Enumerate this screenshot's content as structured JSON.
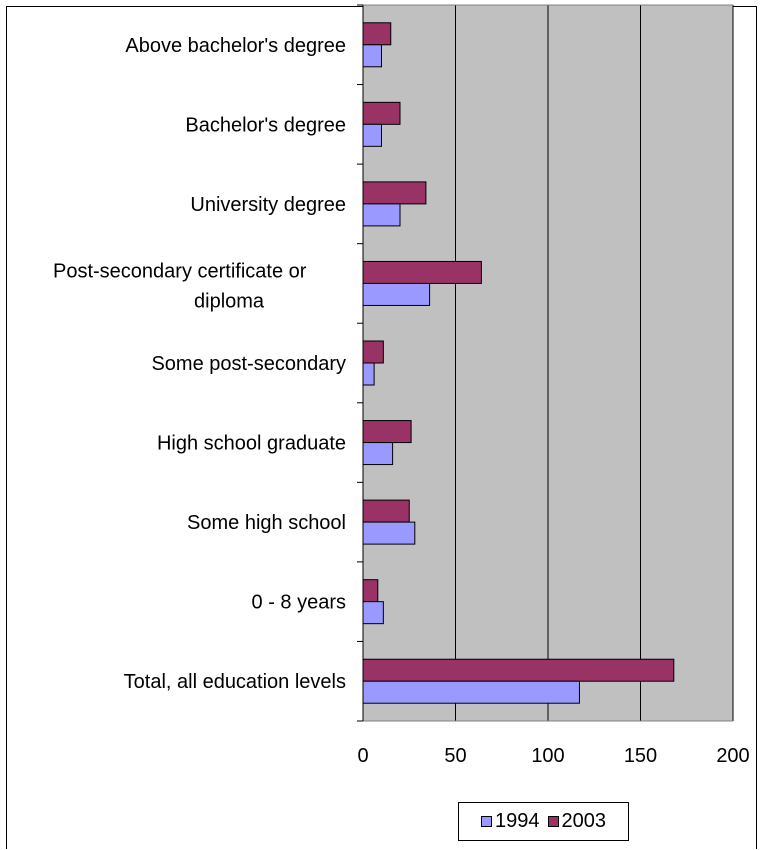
{
  "chart_data": {
    "type": "bar",
    "orientation": "horizontal",
    "categories": [
      "Above bachelor's degree",
      "Bachelor's degree",
      "University degree",
      "Post-secondary certificate or diploma",
      "Some post-secondary",
      "High school graduate",
      "Some high school",
      "0 - 8  years",
      "Total, all education levels"
    ],
    "series": [
      {
        "name": "1994",
        "color": "#9999ff",
        "values": [
          10,
          10,
          20,
          36,
          6,
          16,
          28,
          11,
          117
        ]
      },
      {
        "name": "2003",
        "color": "#993366",
        "values": [
          15,
          20,
          34,
          64,
          11,
          26,
          25,
          8,
          168
        ]
      }
    ],
    "xlim": [
      0,
      200
    ],
    "xticks": [
      0,
      50,
      100,
      150,
      200
    ],
    "title": "",
    "xlabel": "",
    "ylabel": "",
    "plot_background": "#c0c0c0",
    "grid": "vertical",
    "legend": "bottom"
  }
}
